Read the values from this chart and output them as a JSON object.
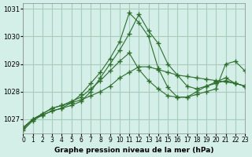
{
  "title": "Graphe pression niveau de la mer (hPa)",
  "background_color": "#d4eee8",
  "grid_color": "#aaccbb",
  "line_color": "#2d6e2d",
  "xlim": [
    0,
    23
  ],
  "ylim": [
    1026.5,
    1031.2
  ],
  "yticks": [
    1027,
    1028,
    1029,
    1030,
    1031
  ],
  "xtick_labels": [
    "0",
    "1",
    "2",
    "3",
    "4",
    "5",
    "6",
    "7",
    "8",
    "9",
    "10",
    "11",
    "12",
    "13",
    "14",
    "15",
    "16",
    "17",
    "18",
    "19",
    "20",
    "21",
    "22",
    "23"
  ],
  "series": [
    {
      "x": [
        0,
        1,
        2,
        3,
        4,
        5,
        6,
        7,
        8,
        9,
        10,
        11,
        12,
        13,
        14,
        15,
        16,
        17,
        18,
        19,
        20,
        21,
        22,
        23
      ],
      "y": [
        1026.7,
        1027.0,
        1027.2,
        1027.4,
        1027.5,
        1027.6,
        1027.7,
        1027.85,
        1028.0,
        1028.2,
        1028.5,
        1028.7,
        1028.9,
        1028.9,
        1028.8,
        1028.7,
        1028.6,
        1028.55,
        1028.5,
        1028.45,
        1028.4,
        1028.35,
        1028.3,
        1028.2
      ]
    },
    {
      "x": [
        0,
        1,
        2,
        3,
        4,
        5,
        6,
        7,
        8,
        9,
        10,
        11,
        12,
        13,
        14,
        15,
        16,
        17,
        18,
        19,
        20,
        21,
        22,
        23
      ],
      "y": [
        1026.7,
        1027.0,
        1027.2,
        1027.4,
        1027.5,
        1027.65,
        1027.8,
        1028.1,
        1028.4,
        1028.75,
        1029.1,
        1029.4,
        1028.8,
        1028.4,
        1028.1,
        1027.85,
        1027.8,
        1027.8,
        1027.9,
        1028.0,
        1028.1,
        1029.0,
        1029.1,
        1028.75
      ]
    },
    {
      "x": [
        0,
        1,
        2,
        3,
        4,
        5,
        6,
        7,
        8,
        9,
        10,
        11,
        12,
        13,
        14,
        15,
        16,
        17,
        18,
        19,
        20,
        21,
        22,
        23
      ],
      "y": [
        1026.65,
        1027.0,
        1027.15,
        1027.3,
        1027.4,
        1027.5,
        1027.65,
        1028.0,
        1028.5,
        1029.0,
        1029.5,
        1030.1,
        1030.8,
        1030.2,
        1029.75,
        1029.0,
        1028.6,
        1028.2,
        1028.1,
        1028.2,
        1028.35,
        1028.5,
        1028.3,
        1028.2
      ]
    },
    {
      "x": [
        0,
        1,
        2,
        3,
        4,
        5,
        6,
        7,
        8,
        9,
        10,
        11,
        12,
        13,
        14,
        15,
        16,
        17,
        18,
        19,
        20,
        21,
        22,
        23
      ],
      "y": [
        1026.6,
        1026.95,
        1027.15,
        1027.3,
        1027.4,
        1027.6,
        1027.9,
        1028.3,
        1028.7,
        1029.2,
        1029.8,
        1030.85,
        1030.5,
        1030.0,
        1028.85,
        1028.15,
        1027.8,
        1027.8,
        1028.0,
        1028.2,
        1028.3,
        1028.4,
        1028.3,
        1028.2
      ]
    }
  ]
}
